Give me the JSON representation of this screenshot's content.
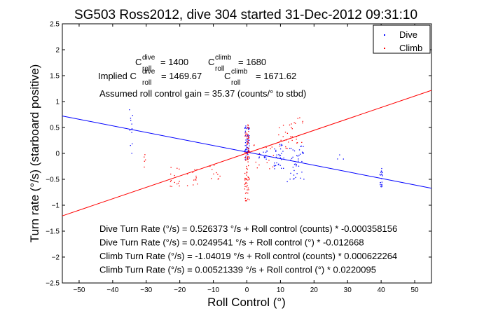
{
  "chart_data": {
    "type": "scatter",
    "title": "SG503 Ross2012, dive 304 started 31-Dec-2012 09:31:10",
    "xlabel": "Roll Control (°)",
    "ylabel": "Turn rate (°/s) (starboard positive)",
    "xlim": [
      -55,
      55
    ],
    "ylim": [
      -2.5,
      2.5
    ],
    "x_ticks": [
      -50,
      -40,
      -30,
      -20,
      -10,
      0,
      10,
      20,
      30,
      40,
      50
    ],
    "y_ticks": [
      -2.5,
      -2,
      -1.5,
      -1,
      -0.5,
      0,
      0.5,
      1,
      1.5,
      2,
      2.5
    ],
    "x_tick_labels": [
      "−50",
      "−40",
      "−30",
      "−20",
      "−10",
      "0",
      "10",
      "20",
      "30",
      "40",
      "50"
    ],
    "y_tick_labels": [
      "−2.5",
      "−2",
      "−1.5",
      "−1",
      "−0.5",
      "0",
      "0.5",
      "1",
      "1.5",
      "2",
      "2.5"
    ],
    "grid": false,
    "legend_position": "top-right",
    "series": [
      {
        "name": "Dive",
        "color": "#0000ff",
        "marker": "dot",
        "clusters": [
          {
            "x": [
              -35,
              -34
            ],
            "y": [
              -0.05,
              0.92
            ],
            "n": 12
          },
          {
            "x": [
              -0.6,
              0.8
            ],
            "y": [
              -0.12,
              0.55
            ],
            "n": 60
          },
          {
            "x": [
              3,
              6
            ],
            "y": [
              -0.15,
              0.05
            ],
            "n": 14
          },
          {
            "x": [
              8,
              11
            ],
            "y": [
              -0.3,
              0.2
            ],
            "n": 30
          },
          {
            "x": [
              12,
              17
            ],
            "y": [
              -0.55,
              0.15
            ],
            "n": 40
          },
          {
            "x": [
              27,
              29
            ],
            "y": [
              -0.12,
              -0.02
            ],
            "n": 3
          },
          {
            "x": [
              39.6,
              40.4
            ],
            "y": [
              -0.65,
              -0.25
            ],
            "n": 20
          }
        ],
        "fit": {
          "intercept": 0.0249541,
          "slope": -0.012668
        }
      },
      {
        "name": "Climb",
        "color": "#ff0000",
        "marker": "dot",
        "clusters": [
          {
            "x": [
              -33,
              -30
            ],
            "y": [
              -0.3,
              0.05
            ],
            "n": 5
          },
          {
            "x": [
              -23,
              -20
            ],
            "y": [
              -0.65,
              -0.25
            ],
            "n": 14
          },
          {
            "x": [
              -18,
              -14
            ],
            "y": [
              -0.65,
              -0.3
            ],
            "n": 12
          },
          {
            "x": [
              -11,
              -8
            ],
            "y": [
              -0.5,
              -0.2
            ],
            "n": 10
          },
          {
            "x": [
              -0.7,
              0.7
            ],
            "y": [
              -0.95,
              0.58
            ],
            "n": 90
          },
          {
            "x": [
              2,
              8
            ],
            "y": [
              -0.3,
              0.25
            ],
            "n": 14
          },
          {
            "x": [
              9,
              13
            ],
            "y": [
              0.05,
              0.55
            ],
            "n": 16
          },
          {
            "x": [
              13,
              17
            ],
            "y": [
              0.2,
              0.78
            ],
            "n": 16
          }
        ],
        "fit": {
          "intercept": 0.00521339,
          "slope": 0.0220095
        }
      }
    ],
    "annotations": {
      "c_roll_dive": "= 1400",
      "c_roll_climb": "= 1680",
      "implied_prefix": "Implied C",
      "implied_dive": "= 1469.67",
      "implied_climb": "= 1671.62",
      "c_letter": "C",
      "sup_dive": "dive",
      "sup_climb": "climb",
      "sub_roll": "roll",
      "gain": "Assumed roll control gain = 35.37 (counts/° to stbd)",
      "fit_lines": [
        "Dive Turn Rate (°/s) = 0.526373 °/s + Roll control (counts) * -0.000358156",
        "Dive Turn Rate (°/s) = 0.0249541 °/s + Roll control (°) * -0.012668",
        "Climb Turn Rate (°/s) = -1.04019 °/s + Roll control (counts) * 0.000622264",
        "Climb Turn Rate (°/s) = 0.00521339 °/s + Roll control (°) * 0.0220095"
      ]
    }
  }
}
